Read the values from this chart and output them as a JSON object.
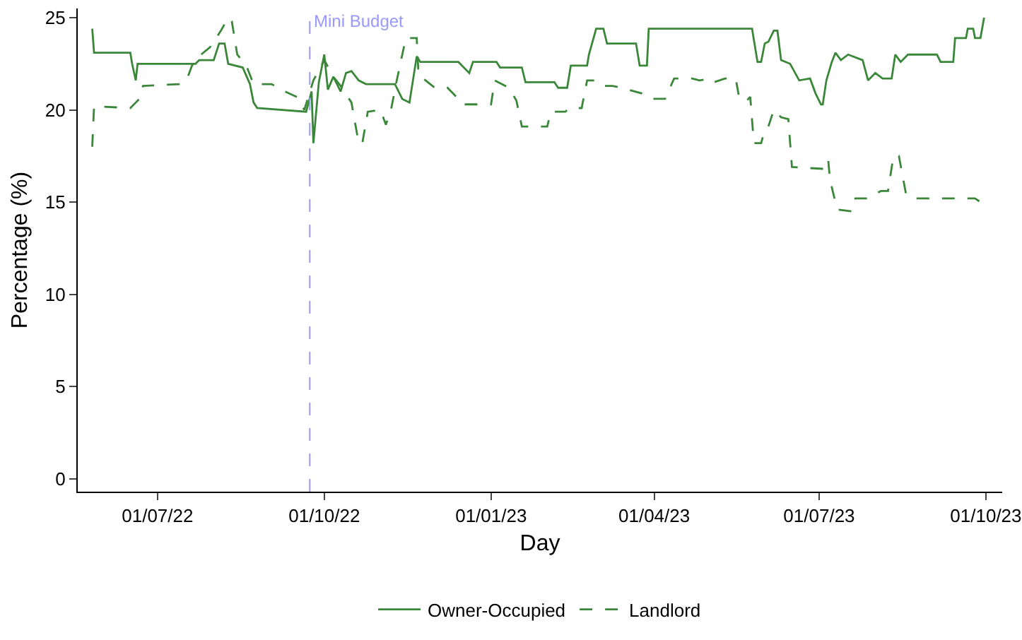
{
  "chart_data": {
    "type": "line",
    "xlabel": "Day",
    "ylabel": "Percentage (%)",
    "xlim": [
      "2022-05-18",
      "2023-10-10"
    ],
    "xticks": [
      {
        "value": "2022-07-01",
        "label": "01/07/22"
      },
      {
        "value": "2022-10-01",
        "label": "01/10/22"
      },
      {
        "value": "2023-01-01",
        "label": "01/01/23"
      },
      {
        "value": "2023-04-01",
        "label": "01/04/23"
      },
      {
        "value": "2023-07-01",
        "label": "01/07/23"
      },
      {
        "value": "2023-10-01",
        "label": "01/10/23"
      }
    ],
    "ylim": [
      -0.7,
      25.5
    ],
    "yticks": [
      0,
      5,
      10,
      15,
      20,
      25
    ],
    "grid": false,
    "legend": "bottom",
    "marker": "none",
    "ref_lines": [
      {
        "axis": "x",
        "value": "2022-09-23",
        "label": "Mini Budget",
        "color": "#9999ff",
        "line_style": "dashed"
      }
    ],
    "series": [
      {
        "name": "Owner-Occupied",
        "color": "#3a873a",
        "line_style": "solid",
        "x": [
          "2022-05-26",
          "2022-05-27",
          "2022-06-16",
          "2022-06-17",
          "2022-06-19",
          "2022-06-20",
          "2022-07-22",
          "2022-07-24",
          "2022-08-01",
          "2022-08-04",
          "2022-08-07",
          "2022-08-09",
          "2022-08-17",
          "2022-08-21",
          "2022-08-23",
          "2022-08-25",
          "2022-09-21",
          "2022-09-24",
          "2022-09-25",
          "2022-09-28",
          "2022-10-01",
          "2022-10-03",
          "2022-10-06",
          "2022-10-10",
          "2022-10-13",
          "2022-10-16",
          "2022-10-20",
          "2022-10-24",
          "2022-11-09",
          "2022-11-13",
          "2022-11-17",
          "2022-11-21",
          "2022-11-23",
          "2022-12-14",
          "2022-12-20",
          "2022-12-22",
          "2023-01-04",
          "2023-01-06",
          "2023-01-18",
          "2023-01-20",
          "2023-02-05",
          "2023-02-07",
          "2023-02-12",
          "2023-02-14",
          "2023-02-23",
          "2023-02-24",
          "2023-02-28",
          "2023-03-04",
          "2023-03-06",
          "2023-03-22",
          "2023-03-24",
          "2023-03-28",
          "2023-03-29",
          "2023-05-25",
          "2023-05-28",
          "2023-05-30",
          "2023-06-01",
          "2023-06-03",
          "2023-06-06",
          "2023-06-08",
          "2023-06-10",
          "2023-06-15",
          "2023-06-20",
          "2023-06-26",
          "2023-06-29",
          "2023-07-02",
          "2023-07-03",
          "2023-07-05",
          "2023-07-08",
          "2023-07-10",
          "2023-07-13",
          "2023-07-17",
          "2023-07-25",
          "2023-07-28",
          "2023-08-01",
          "2023-08-05",
          "2023-08-10",
          "2023-08-12",
          "2023-08-15",
          "2023-08-19",
          "2023-09-04",
          "2023-09-06",
          "2023-09-13",
          "2023-09-14",
          "2023-09-20",
          "2023-09-21",
          "2023-09-24",
          "2023-09-25",
          "2023-09-28",
          "2023-09-30"
        ],
        "values": [
          24.4,
          23.1,
          23.1,
          22.5,
          21.6,
          22.5,
          22.5,
          22.7,
          22.7,
          23.6,
          23.6,
          22.5,
          22.3,
          21.4,
          20.4,
          20.1,
          19.9,
          21.0,
          18.2,
          21.5,
          23.0,
          21.1,
          21.8,
          21.0,
          22.0,
          22.1,
          21.6,
          21.4,
          21.4,
          20.6,
          20.4,
          22.9,
          22.6,
          22.6,
          22.0,
          22.6,
          22.6,
          22.3,
          22.3,
          21.5,
          21.5,
          21.2,
          21.2,
          22.4,
          22.4,
          23.0,
          24.4,
          24.4,
          23.6,
          23.6,
          22.4,
          22.4,
          24.4,
          24.4,
          22.6,
          22.6,
          23.6,
          23.7,
          24.3,
          24.3,
          22.7,
          22.5,
          21.6,
          21.7,
          20.9,
          20.3,
          20.3,
          21.6,
          22.6,
          23.1,
          22.7,
          23.0,
          22.7,
          21.6,
          22.0,
          21.7,
          21.7,
          23.0,
          22.6,
          23.0,
          23.0,
          22.6,
          22.6,
          23.9,
          23.9,
          24.4,
          24.4,
          23.9,
          23.9,
          25.0
        ]
      },
      {
        "name": "Landlord",
        "color": "#3a873a",
        "line_style": "dashed",
        "x": [
          "2022-05-26",
          "2022-05-27",
          "2022-06-16",
          "2022-06-19",
          "2022-06-21",
          "2022-06-23",
          "2022-07-13",
          "2022-07-17",
          "2022-07-20",
          "2022-07-25",
          "2022-07-30",
          "2022-08-05",
          "2022-08-09",
          "2022-08-11",
          "2022-08-14",
          "2022-08-19",
          "2022-08-23",
          "2022-09-02",
          "2022-09-07",
          "2022-09-16",
          "2022-09-20",
          "2022-09-25",
          "2022-10-01",
          "2022-10-06",
          "2022-10-10",
          "2022-10-16",
          "2022-10-20",
          "2022-10-22",
          "2022-10-25",
          "2022-11-01",
          "2022-11-04",
          "2022-11-07",
          "2022-11-10",
          "2022-11-15",
          "2022-11-21",
          "2022-11-22",
          "2022-12-01",
          "2022-12-08",
          "2022-12-12",
          "2022-12-16",
          "2023-01-01",
          "2023-01-03",
          "2023-01-11",
          "2023-01-15",
          "2023-01-18",
          "2023-02-01",
          "2023-02-03",
          "2023-02-11",
          "2023-02-13",
          "2023-02-20",
          "2023-02-23",
          "2023-02-28",
          "2023-03-04",
          "2023-03-09",
          "2023-03-14",
          "2023-03-25",
          "2023-03-30",
          "2023-04-07",
          "2023-04-12",
          "2023-04-22",
          "2023-04-26",
          "2023-05-02",
          "2023-05-04",
          "2023-05-10",
          "2023-05-16",
          "2023-05-18",
          "2023-05-22",
          "2023-05-24",
          "2023-05-26",
          "2023-05-30",
          "2023-06-01",
          "2023-06-03",
          "2023-06-06",
          "2023-06-10",
          "2023-06-14",
          "2023-06-16",
          "2023-07-04",
          "2023-07-06",
          "2023-07-07",
          "2023-07-11",
          "2023-07-19",
          "2023-07-21",
          "2023-07-28",
          "2023-08-04",
          "2023-08-08",
          "2023-08-11",
          "2023-08-14",
          "2023-08-18",
          "2023-08-23",
          "2023-09-25",
          "2023-09-28"
        ],
        "values": [
          18.0,
          20.2,
          20.1,
          20.4,
          20.6,
          21.3,
          21.4,
          21.6,
          22.4,
          23.0,
          23.4,
          24.3,
          25.0,
          24.8,
          23.0,
          22.4,
          21.4,
          21.4,
          21.1,
          20.7,
          20.0,
          21.6,
          22.7,
          21.8,
          21.3,
          20.4,
          18.2,
          18.2,
          19.9,
          20.0,
          19.2,
          20.1,
          21.6,
          23.9,
          23.9,
          21.9,
          21.2,
          21.2,
          20.8,
          20.3,
          20.3,
          21.6,
          21.2,
          20.5,
          19.1,
          19.1,
          19.9,
          19.9,
          20.1,
          20.1,
          21.6,
          21.6,
          21.3,
          21.3,
          21.2,
          20.9,
          20.6,
          20.6,
          21.7,
          21.7,
          21.6,
          21.7,
          21.5,
          21.7,
          21.7,
          20.6,
          20.5,
          20.7,
          18.2,
          18.2,
          18.9,
          19.1,
          20.0,
          19.6,
          19.5,
          16.9,
          16.8,
          17.3,
          16.2,
          14.6,
          14.5,
          15.2,
          15.2,
          15.6,
          15.6,
          17.5,
          17.5,
          15.4,
          15.2,
          15.2,
          15.0
        ]
      }
    ]
  }
}
